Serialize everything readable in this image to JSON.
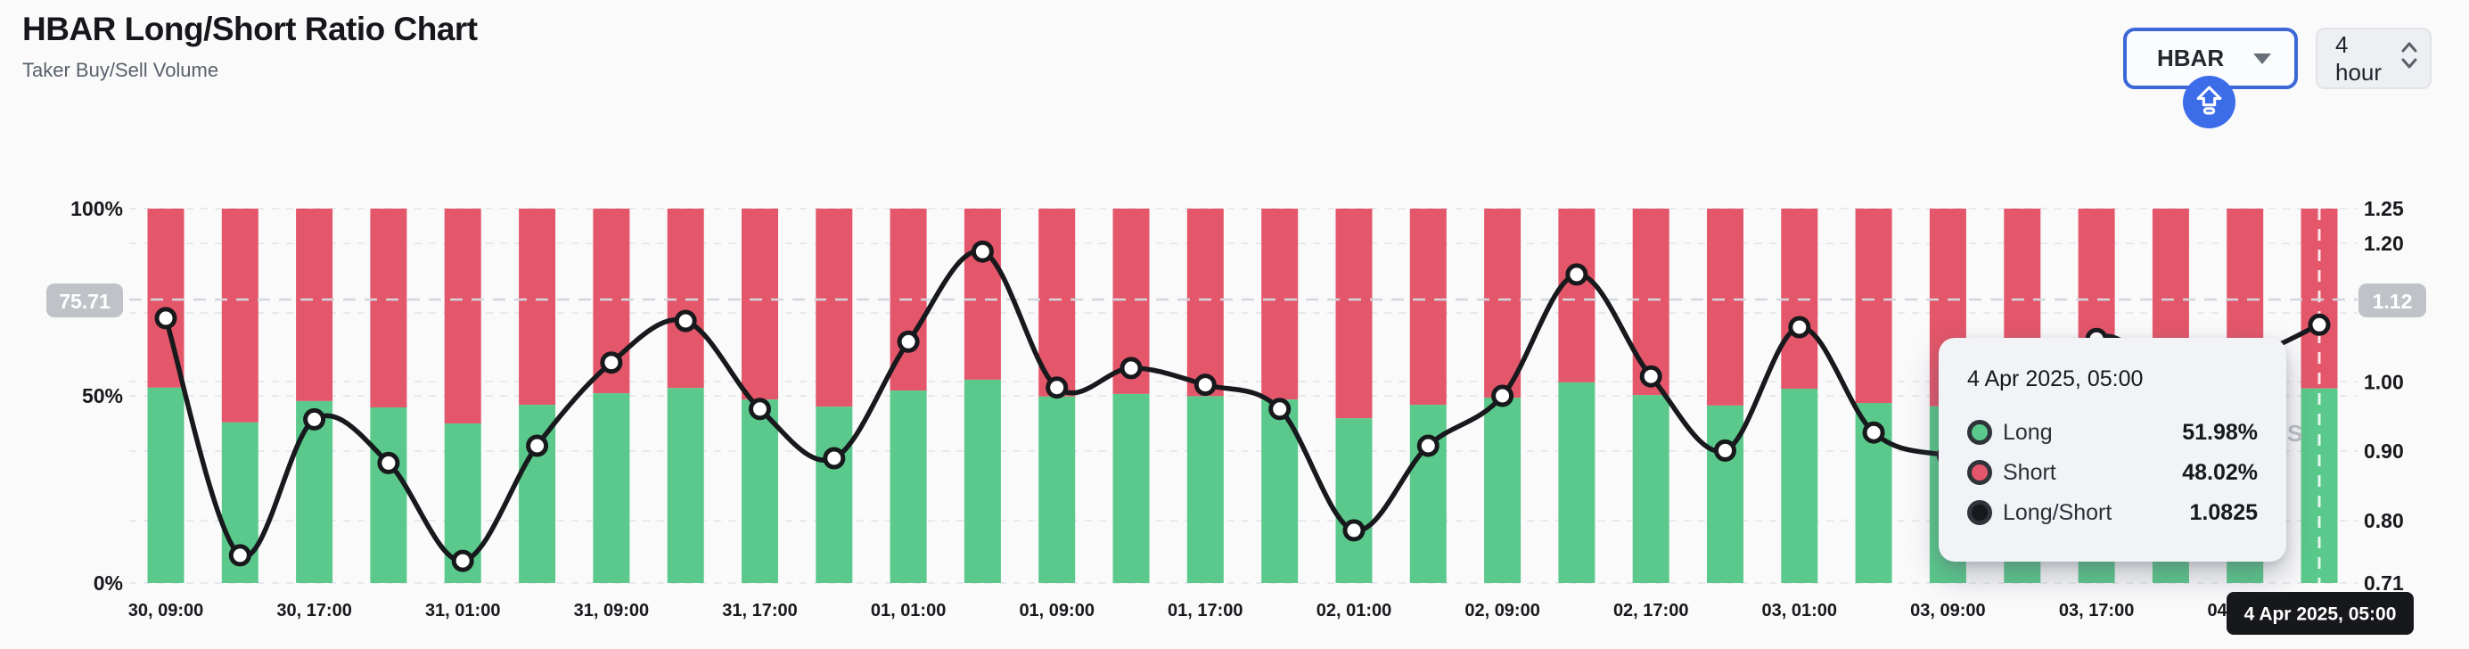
{
  "header": {
    "title": "HBAR Long/Short Ratio Chart",
    "subtitle": "Taker Buy/Sell Volume"
  },
  "controls": {
    "symbol_select": {
      "value": "HBAR"
    },
    "interval_select": {
      "value": "4 hour"
    }
  },
  "colors": {
    "long": "#5ac98b",
    "short": "#e4566a",
    "ratio_line": "#17191c",
    "crosshair_badge_gray": "#bfc2c7",
    "date_badge_bg": "#17181b",
    "accent_blue": "#3d6ce8",
    "background": "#fafafb"
  },
  "watermark_fragment": "S",
  "crosshair": {
    "left_axis_badge": "75.71",
    "right_axis_badge": "1.12",
    "date_badge": "4 Apr 2025, 05:00",
    "y_ratio_value": 1.1188
  },
  "tooltip": {
    "title": "4 Apr 2025, 05:00",
    "rows": [
      {
        "label": "Long",
        "value": "51.98%",
        "marker_color": "#5ac98b"
      },
      {
        "label": "Short",
        "value": "48.02%",
        "marker_color": "#e4566a"
      },
      {
        "label": "Long/Short",
        "value": "1.0825",
        "marker_color": "#17181b"
      }
    ]
  },
  "chart_data": {
    "type": "bar",
    "stacked": true,
    "title": "HBAR Long/Short Ratio Chart",
    "grid": true,
    "legend": false,
    "hovered_index": 29,
    "x_ticks_every": 2,
    "categories": [
      "30, 09:00",
      "30, 13:00",
      "30, 17:00",
      "30, 21:00",
      "31, 01:00",
      "31, 05:00",
      "31, 09:00",
      "31, 13:00",
      "31, 17:00",
      "31, 21:00",
      "01, 01:00",
      "01, 05:00",
      "01, 09:00",
      "01, 13:00",
      "01, 17:00",
      "01, 21:00",
      "02, 01:00",
      "02, 05:00",
      "02, 09:00",
      "02, 13:00",
      "02, 17:00",
      "02, 21:00",
      "03, 01:00",
      "03, 05:00",
      "03, 09:00",
      "03, 13:00",
      "03, 17:00",
      "03, 21:00",
      "04, 01:00",
      "04, 05:00"
    ],
    "x_axis_visible_labels": [
      "30, 09:00",
      "30, 17:00",
      "31, 01:00",
      "31, 09:00",
      "31, 17:00",
      "01, 01:00",
      "01, 09:00",
      "01, 17:00",
      "02, 01:00",
      "02, 09:00",
      "02, 17:00",
      "03, 01:00",
      "03, 09:00",
      "03, 17:00",
      "04, 01:00"
    ],
    "series": [
      {
        "name": "Long",
        "type": "bar",
        "unit": "%",
        "color": "#5ac98b",
        "values": [
          52.2,
          42.9,
          48.6,
          46.9,
          42.6,
          47.6,
          50.7,
          52.1,
          49.0,
          47.1,
          51.4,
          54.3,
          49.8,
          50.5,
          49.9,
          49.0,
          44.0,
          47.6,
          49.5,
          53.6,
          50.2,
          47.4,
          51.9,
          48.1,
          47.2,
          47.0,
          51.5,
          50.3,
          50.8,
          51.98
        ]
      },
      {
        "name": "Short",
        "type": "bar",
        "unit": "%",
        "color": "#e4566a",
        "values": [
          47.8,
          57.1,
          51.4,
          53.1,
          57.4,
          52.4,
          49.3,
          47.9,
          51.0,
          52.9,
          48.6,
          45.7,
          50.2,
          49.5,
          50.1,
          51.0,
          56.0,
          52.4,
          50.5,
          46.4,
          49.8,
          52.6,
          48.1,
          51.9,
          52.8,
          53.0,
          48.5,
          49.7,
          49.2,
          48.02
        ]
      },
      {
        "name": "Long/Short",
        "type": "line",
        "axis": "right",
        "color": "#17191c",
        "values": [
          1.092,
          0.75,
          0.946,
          0.883,
          0.742,
          0.908,
          1.028,
          1.088,
          0.961,
          0.89,
          1.058,
          1.188,
          0.992,
          1.02,
          0.996,
          0.961,
          0.786,
          0.908,
          0.98,
          1.155,
          1.008,
          0.901,
          1.079,
          0.927,
          0.894,
          0.887,
          1.062,
          1.012,
          1.033,
          1.0825
        ]
      }
    ],
    "left_axis": {
      "range": [
        0,
        100
      ],
      "tick_labels": [
        "100%",
        "50%",
        "0%"
      ],
      "tick_values": [
        100,
        50,
        0
      ]
    },
    "right_axis": {
      "range": [
        0.71,
        1.25
      ],
      "tick_labels": [
        "1.25",
        "1.20",
        "1.00",
        "0.90",
        "0.80",
        "0.71"
      ],
      "tick_values": [
        1.25,
        1.2,
        1.0,
        0.9,
        0.8,
        0.71
      ],
      "hidden_gridline_values": [
        1.1
      ]
    }
  }
}
